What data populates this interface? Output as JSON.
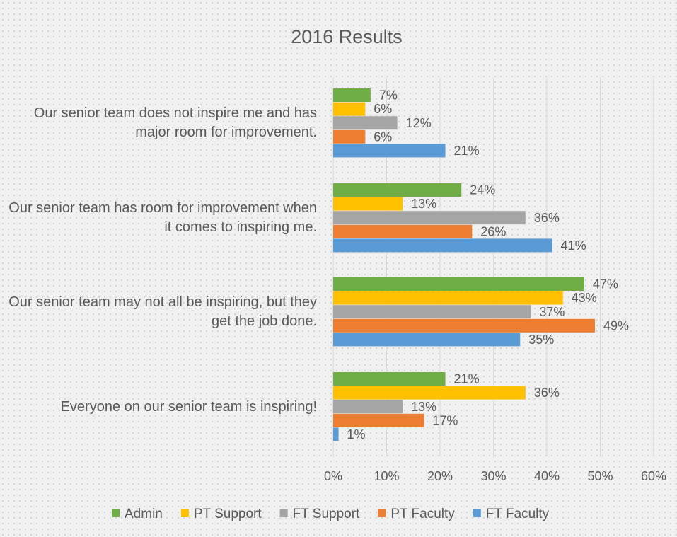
{
  "chart_data": {
    "type": "barh",
    "title": "2016 Results",
    "categories": [
      "Our senior team does not inspire me and has major room for improvement.",
      "Our senior team has room for improvement when it comes to inspiring me.",
      "Our senior team may not all be inspiring, but they get the job done.",
      "Everyone on our senior team is inspiring!"
    ],
    "series": [
      {
        "name": "Admin",
        "color": "#70ad47",
        "values": [
          7,
          24,
          47,
          21
        ],
        "value_labels": [
          "7%",
          "24%",
          "47%",
          "21%"
        ]
      },
      {
        "name": "PT Support",
        "color": "#ffc000",
        "values": [
          6,
          13,
          43,
          36
        ],
        "value_labels": [
          "6%",
          "13%",
          "43%",
          "36%"
        ]
      },
      {
        "name": "FT Support",
        "color": "#a5a5a5",
        "values": [
          12,
          36,
          37,
          13
        ],
        "value_labels": [
          "12%",
          "36%",
          "37%",
          "13%"
        ]
      },
      {
        "name": "PT Faculty",
        "color": "#ed7d31",
        "values": [
          6,
          26,
          49,
          17
        ],
        "value_labels": [
          "6%",
          "26%",
          "49%",
          "17%"
        ]
      },
      {
        "name": "FT Faculty",
        "color": "#5b9bd5",
        "values": [
          21,
          41,
          35,
          1
        ],
        "value_labels": [
          "21%",
          "41%",
          "35%",
          "1%"
        ]
      }
    ],
    "xlim": [
      0,
      60
    ],
    "xticks": [
      {
        "value": 0,
        "label": "0%"
      },
      {
        "value": 10,
        "label": "10%"
      },
      {
        "value": 20,
        "label": "20%"
      },
      {
        "value": 30,
        "label": "30%"
      },
      {
        "value": 40,
        "label": "40%"
      },
      {
        "value": 50,
        "label": "50%"
      },
      {
        "value": 60,
        "label": "60%"
      }
    ],
    "grid": true,
    "legend": "bottom"
  }
}
